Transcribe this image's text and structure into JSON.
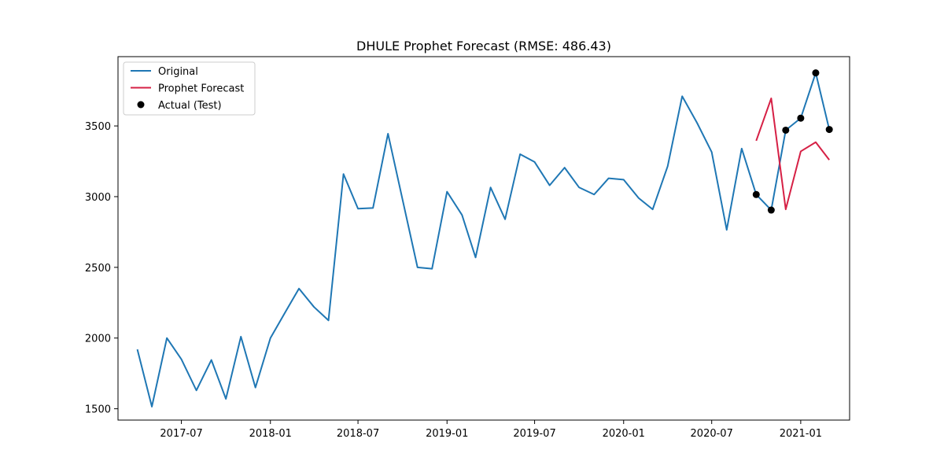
{
  "chart_data": {
    "type": "line",
    "title": "DHULE Prophet Forecast (RMSE: 486.43)",
    "xlabel": "",
    "ylabel": "",
    "x_ticks": [
      "2017-07",
      "2018-01",
      "2018-07",
      "2019-01",
      "2019-07",
      "2020-01",
      "2020-07",
      "2021-01"
    ],
    "y_ticks": [
      1500,
      2000,
      2500,
      3000,
      3500
    ],
    "xlim": [
      "2017-02-20",
      "2021-04-12"
    ],
    "ylim": [
      1420,
      3990
    ],
    "legend": {
      "placement": "top-left"
    },
    "grid": false,
    "colors": {
      "original": "#1f77b4",
      "forecast": "#d62045",
      "actual": "#000000"
    },
    "series": [
      {
        "name": "Original",
        "kind": "line",
        "color": "#1f77b4",
        "x": [
          "2017-04-01",
          "2017-05-01",
          "2017-06-01",
          "2017-07-01",
          "2017-08-01",
          "2017-09-01",
          "2017-10-01",
          "2017-11-01",
          "2017-12-01",
          "2018-01-01",
          "2018-02-01",
          "2018-03-01",
          "2018-04-01",
          "2018-05-01",
          "2018-06-01",
          "2018-07-01",
          "2018-08-01",
          "2018-09-01",
          "2018-10-01",
          "2018-11-01",
          "2018-12-01",
          "2019-01-01",
          "2019-02-01",
          "2019-03-01",
          "2019-04-01",
          "2019-05-01",
          "2019-06-01",
          "2019-07-01",
          "2019-08-01",
          "2019-09-01",
          "2019-10-01",
          "2019-11-01",
          "2019-12-01",
          "2020-01-01",
          "2020-02-01",
          "2020-03-01",
          "2020-04-01",
          "2020-05-01",
          "2020-06-01",
          "2020-07-01",
          "2020-08-01",
          "2020-09-01",
          "2020-10-01",
          "2020-11-01",
          "2020-12-01",
          "2021-01-01",
          "2021-02-01",
          "2021-03-01"
        ],
        "y": [
          1920,
          1515,
          2000,
          1850,
          1630,
          1845,
          1570,
          2010,
          1650,
          2000,
          2185,
          2350,
          2220,
          2125,
          3160,
          2915,
          2920,
          3445,
          2980,
          2500,
          2490,
          3035,
          2870,
          2570,
          3065,
          2840,
          3300,
          3245,
          3080,
          3205,
          3065,
          3015,
          3130,
          3120,
          2990,
          2910,
          3215,
          3710,
          3520,
          3315,
          2765,
          3340,
          3015,
          2905,
          3470,
          3555,
          3875,
          3475
        ]
      },
      {
        "name": "Prophet Forecast",
        "kind": "line",
        "color": "#d62045",
        "x": [
          "2020-10-01",
          "2020-11-01",
          "2020-12-01",
          "2021-01-01",
          "2021-02-01",
          "2021-03-01"
        ],
        "y": [
          3395,
          3695,
          2910,
          3320,
          3385,
          3260
        ]
      },
      {
        "name": "Actual (Test)",
        "kind": "scatter",
        "color": "#000000",
        "x": [
          "2020-10-01",
          "2020-11-01",
          "2020-12-01",
          "2021-01-01",
          "2021-02-01",
          "2021-03-01"
        ],
        "y": [
          3015,
          2905,
          3470,
          3555,
          3875,
          3475
        ]
      }
    ]
  }
}
